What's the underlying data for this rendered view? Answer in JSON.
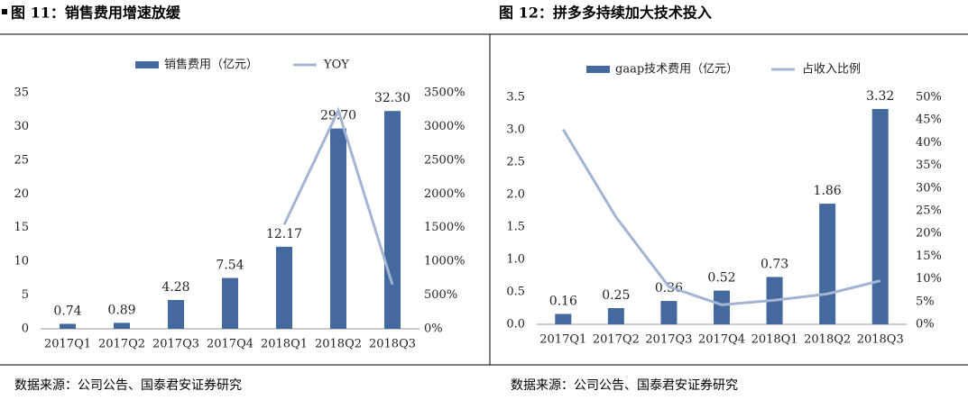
{
  "chart_data": [
    {
      "type": "bar",
      "title": "图 11：销售费用增速放缓",
      "source": "数据来源：公司公告、国泰君安证券研究",
      "categories": [
        "2017Q1",
        "2017Q2",
        "2017Q3",
        "2017Q4",
        "2018Q1",
        "2018Q2",
        "2018Q3"
      ],
      "series": [
        {
          "name": "销售费用（亿元）",
          "type": "bar",
          "color": "#44699e",
          "values": [
            0.74,
            0.89,
            4.28,
            7.54,
            12.17,
            29.7,
            32.3
          ],
          "value_labels": [
            "0.74",
            "0.89",
            "4.28",
            "7.54",
            "12.17",
            "29.70",
            "32.30"
          ]
        },
        {
          "name": "YOY",
          "type": "line",
          "axis": "y2",
          "color": "#a3b5d3",
          "values": [
            null,
            null,
            null,
            null,
            1545,
            3237,
            655
          ]
        }
      ],
      "ylim": [
        0,
        35
      ],
      "yticks": [
        0,
        5,
        10,
        15,
        20,
        25,
        30,
        35
      ],
      "y2lim": [
        0,
        3500
      ],
      "y2ticks": [
        {
          "value": 0,
          "label": "0%"
        },
        {
          "value": 500,
          "label": "500%"
        },
        {
          "value": 1000,
          "label": "1000%"
        },
        {
          "value": 1500,
          "label": "1500%"
        },
        {
          "value": 2000,
          "label": "2000%"
        },
        {
          "value": 2500,
          "label": "2500%"
        },
        {
          "value": 3000,
          "label": "3000%"
        },
        {
          "value": 3500,
          "label": "3500%"
        }
      ]
    },
    {
      "type": "bar",
      "title": "图 12：拼多多持续加大技术投入",
      "source": "数据来源：公司公告、国泰君安证券研究",
      "categories": [
        "2017Q1",
        "2017Q2",
        "2017Q3",
        "2017Q4",
        "2018Q1",
        "2018Q2",
        "2018Q3"
      ],
      "series": [
        {
          "name": "gaap技术费用（亿元）",
          "type": "bar",
          "color": "#44699e",
          "values": [
            0.16,
            0.25,
            0.36,
            0.52,
            0.73,
            1.86,
            3.32
          ]
        },
        {
          "name": "占收入比例",
          "type": "line",
          "axis": "y2",
          "color": "#a3b5d3",
          "values": [
            42.9,
            23.6,
            8.3,
            4.3,
            5.3,
            6.7,
            9.6
          ]
        }
      ],
      "ylim": [
        0,
        3.5
      ],
      "yticks": [
        {
          "value": 0,
          "label": "0.0"
        },
        0.5,
        {
          "value": 1,
          "label": "1.0"
        },
        1.5,
        {
          "value": 2,
          "label": "2.0"
        },
        2.5,
        {
          "value": 3,
          "label": "3.0"
        },
        3.5
      ],
      "y2lim": [
        0,
        50
      ],
      "y2ticks": [
        {
          "value": 0,
          "label": "0%"
        },
        {
          "value": 5,
          "label": "5%"
        },
        {
          "value": 10,
          "label": "10%"
        },
        {
          "value": 15,
          "label": "15%"
        },
        {
          "value": 20,
          "label": "20%"
        },
        {
          "value": 25,
          "label": "25%"
        },
        {
          "value": 30,
          "label": "30%"
        },
        {
          "value": 35,
          "label": "35%"
        },
        {
          "value": 40,
          "label": "40%"
        },
        {
          "value": 45,
          "label": "45%"
        },
        {
          "value": 50,
          "label": "50%"
        }
      ]
    }
  ]
}
